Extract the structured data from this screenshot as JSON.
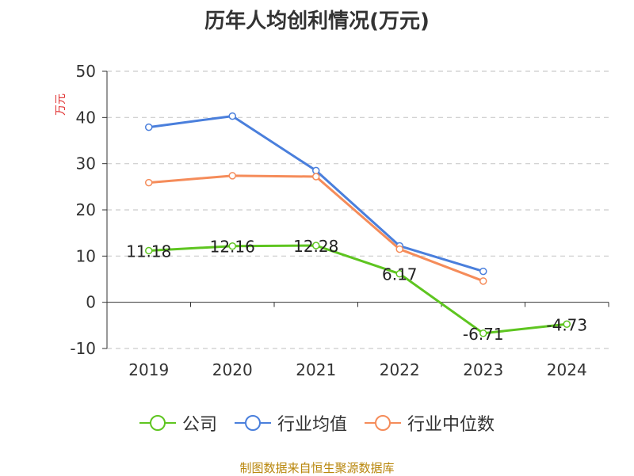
{
  "chart_data": {
    "type": "line",
    "title": "历年人均创利情况(万元)",
    "ylabel": "万元",
    "ylim": [
      -10,
      50
    ],
    "yticks": [
      50,
      40,
      30,
      20,
      10,
      0,
      -10
    ],
    "categories": [
      "2019",
      "2020",
      "2021",
      "2022",
      "2023",
      "2024"
    ],
    "grid": true,
    "legend_position": "bottom",
    "series": [
      {
        "name": "公司",
        "color": "#5ec520",
        "values": [
          11.18,
          12.16,
          12.28,
          6.17,
          -6.71,
          -4.73
        ],
        "labels": [
          "11.18",
          "12.16",
          "12.28",
          "6.17",
          "-6.71",
          "-4.73"
        ]
      },
      {
        "name": "行业均值",
        "color": "#4a7fdc",
        "values": [
          37.9,
          40.3,
          28.5,
          12.2,
          6.7,
          null
        ]
      },
      {
        "name": "行业中位数",
        "color": "#f58c5a",
        "values": [
          25.9,
          27.4,
          27.2,
          11.5,
          4.6,
          null
        ]
      }
    ]
  },
  "source": "制图数据来自恒生聚源数据库"
}
